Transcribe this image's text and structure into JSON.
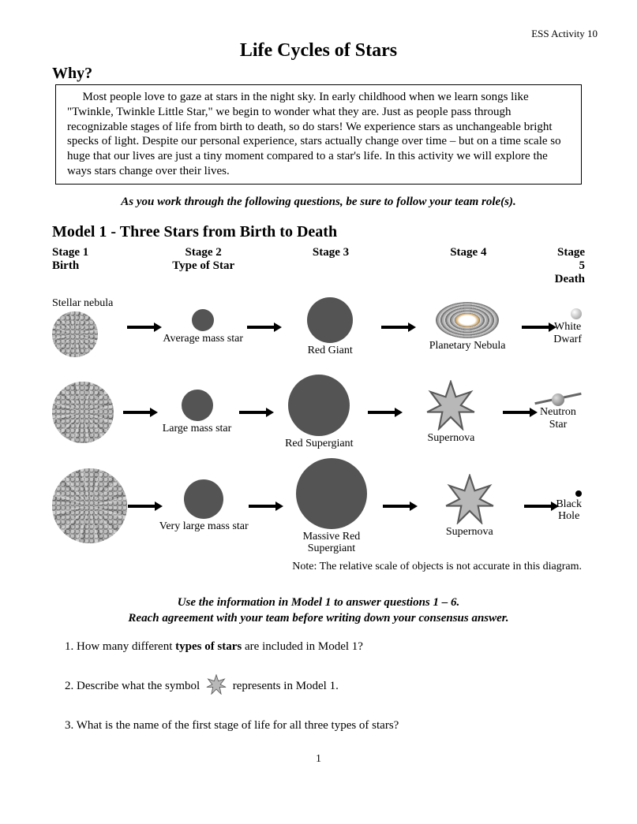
{
  "header": {
    "activity_label": "ESS Activity 10"
  },
  "title": "Life Cycles of Stars",
  "why_heading": "Why?",
  "intro": "Most people love to gaze at stars in the night sky. In early childhood when we learn songs like \"Twinkle, Twinkle Little Star,\" we begin to wonder what they are. Just as people pass through recognizable stages of life from birth to death, so do stars! We experience stars as unchangeable bright specks of light. Despite our personal experience, stars actually change over time – but on a time scale so huge that our lives are just a tiny moment compared to a star's life. In this activity we will explore the ways stars change over their lives.",
  "team_role_line": "As you work through the following questions, be sure to follow your team role(s).",
  "model": {
    "heading": "Model 1 - Three Stars from Birth to Death",
    "stage_labels": {
      "s1a": "Stage 1",
      "s1b": "Birth",
      "s2a": "Stage 2",
      "s2b": "Type of Star",
      "s3a": "Stage 3",
      "s3b": "",
      "s4a": "Stage 4",
      "s4b": "",
      "s5a": "Stage 5",
      "s5b": "Death"
    },
    "rows": [
      {
        "nebula_label": "Stellar nebula",
        "nebula_size": 58,
        "star_size": 28,
        "star_label": "Average mass star",
        "giant_size": 58,
        "giant_label": "Red Giant",
        "stage4_type": "planetary",
        "stage4_label": "Planetary Nebula",
        "stage5_type": "white-dwarf",
        "stage5_label": "White Dwarf"
      },
      {
        "nebula_label": "",
        "nebula_size": 78,
        "star_size": 40,
        "star_label": "Large mass star",
        "giant_size": 78,
        "giant_label": "Red Supergiant",
        "stage4_type": "supernova",
        "stage4_label": "Supernova",
        "stage5_type": "neutron",
        "stage5_label": "Neutron Star"
      },
      {
        "nebula_label": "",
        "nebula_size": 95,
        "star_size": 50,
        "star_label": "Very large mass star",
        "giant_size": 90,
        "giant_label": "Massive Red Supergiant",
        "stage4_type": "supernova",
        "stage4_label": "Supernova",
        "stage5_type": "black-hole",
        "stage5_label": "Black Hole"
      }
    ],
    "note": "Note: The relative scale of objects is not accurate in this diagram."
  },
  "instructions": {
    "line1": "Use the information in Model 1 to answer questions 1 – 6.",
    "line2": "Reach agreement with your team before writing down your consensus answer."
  },
  "questions": {
    "q1a": "1. How many different ",
    "q1b": "types of stars",
    "q1c": " are included in Model 1?",
    "q2a": "2. Describe what the symbol ",
    "q2b": " represents in Model 1.",
    "q3": "3. What is the name of the first stage of life for all three types of stars?"
  },
  "page_number": "1",
  "colors": {
    "circle_fill": "#545454",
    "arrow": "#000000",
    "supernova_fill": "#b8b8b8",
    "supernova_stroke": "#5a5a5a"
  }
}
